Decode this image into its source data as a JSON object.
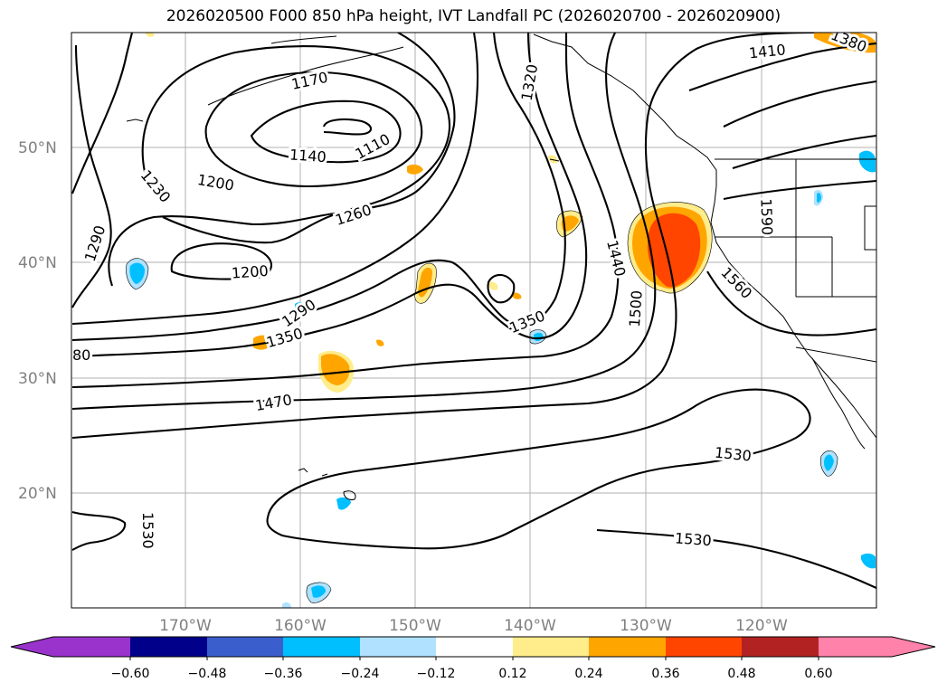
{
  "title": "2026020500 F000 850 hPa height, IVT Landfall PC (2026020700 - 2026020900)",
  "map": {
    "lat_labels": [
      "50°N",
      "40°N",
      "30°N",
      "20°N"
    ],
    "lon_labels": [
      "170°W",
      "160°W",
      "150°W",
      "140°W",
      "130°W",
      "120°W"
    ],
    "contour_labels": [
      "1170",
      "1110",
      "1140",
      "1200",
      "1230",
      "1260",
      "1290",
      "1200",
      "1290",
      "1350",
      "1350",
      "1320",
      "1410",
      "1380",
      "1440",
      "1500",
      "1560",
      "1590",
      "80",
      "1470",
      "1530",
      "1530",
      "1530"
    ]
  },
  "colorbar": {
    "ticks": [
      "−0.60",
      "−0.48",
      "−0.36",
      "−0.24",
      "−0.12",
      "0.12",
      "0.24",
      "0.36",
      "0.48",
      "0.60"
    ],
    "colors": [
      "#9933cc",
      "#00008b",
      "#3a5fcd",
      "#00bfff",
      "#b0e2ff",
      "#ffffff",
      "#ffec8b",
      "#ffa500",
      "#ff4500",
      "#b22222",
      "#ff82ab"
    ]
  }
}
